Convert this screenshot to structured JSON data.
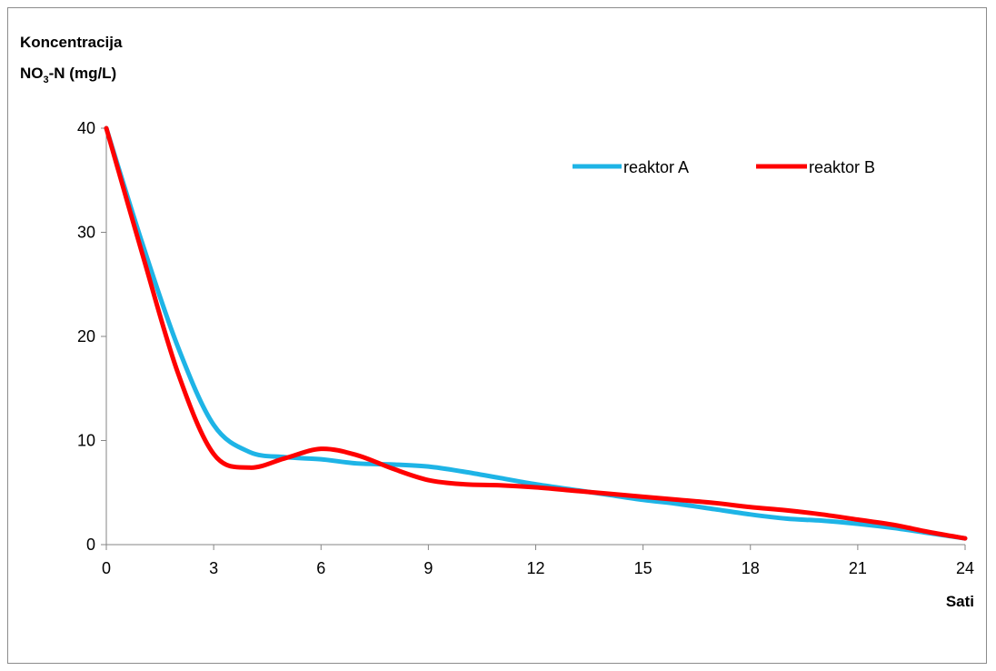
{
  "chart_data": {
    "type": "line",
    "ylabel_line1": "Koncentracija",
    "ylabel_line2_main": "NO",
    "ylabel_line2_sub": "3",
    "ylabel_line2_rest": "-N (mg/L)",
    "xlabel": "Sati",
    "xlim": [
      0,
      24
    ],
    "ylim": [
      0,
      40
    ],
    "xticks": [
      0,
      3,
      6,
      9,
      12,
      15,
      18,
      21,
      24
    ],
    "yticks": [
      0,
      10,
      20,
      30,
      40
    ],
    "grid": false,
    "legend_position": "top-right",
    "series": [
      {
        "name": "reaktor A",
        "color": "#1eb4e6",
        "x": [
          0,
          1,
          2,
          3,
          4,
          5,
          6,
          7,
          8,
          9,
          10,
          11,
          12,
          13,
          14,
          15,
          16,
          17,
          18,
          19,
          20,
          21,
          22,
          23,
          24
        ],
        "y": [
          40,
          29,
          19,
          11.5,
          8.9,
          8.4,
          8.2,
          7.8,
          7.7,
          7.5,
          7.0,
          6.4,
          5.8,
          5.3,
          4.8,
          4.3,
          3.9,
          3.4,
          2.9,
          2.5,
          2.3,
          2.0,
          1.6,
          1.1,
          0.6
        ]
      },
      {
        "name": "reaktor B",
        "color": "#ff0000",
        "x": [
          0,
          1,
          2,
          3,
          4,
          5,
          6,
          7,
          8,
          9,
          10,
          11,
          12,
          13,
          14,
          15,
          16,
          17,
          18,
          19,
          20,
          21,
          22,
          23,
          24
        ],
        "y": [
          40,
          28,
          16.5,
          8.7,
          7.4,
          8.3,
          9.2,
          8.6,
          7.3,
          6.2,
          5.8,
          5.7,
          5.5,
          5.2,
          4.9,
          4.6,
          4.3,
          4.0,
          3.6,
          3.3,
          2.9,
          2.4,
          1.9,
          1.2,
          0.6
        ]
      }
    ]
  }
}
